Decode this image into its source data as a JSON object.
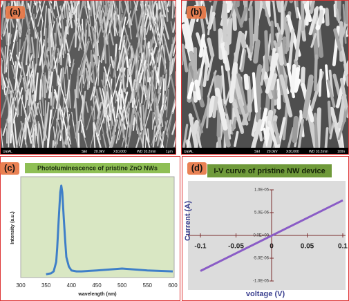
{
  "panels": [
    {
      "label": "(a)",
      "footer": [
        "UaIAL",
        "SEI",
        "20.0kV",
        "X10,000",
        "WD 10.2mm",
        "1μm"
      ]
    },
    {
      "label": "(b)",
      "footer": [
        "UaIAL",
        "SEI",
        "20.0kV",
        "X30,000",
        "WD 10.2mm",
        "100n"
      ]
    },
    {
      "label": "(c)"
    },
    {
      "label": "(d)"
    }
  ],
  "chart_data": [
    {
      "type": "line",
      "title": "Photoluminescence of pristine ZnO NWs",
      "x_label": "wavelength (nm)",
      "y_label": "Intensity (a.u.)",
      "x": [
        350,
        360,
        365,
        370,
        372,
        375,
        378,
        380,
        382,
        385,
        388,
        390,
        395,
        400,
        410,
        420,
        450,
        500,
        550,
        600
      ],
      "values": [
        0.02,
        0.03,
        0.05,
        0.15,
        0.3,
        0.6,
        0.88,
        0.95,
        0.88,
        0.6,
        0.35,
        0.2,
        0.1,
        0.06,
        0.05,
        0.05,
        0.06,
        0.08,
        0.06,
        0.05
      ],
      "color": "#3f7fc8",
      "xlim": [
        300,
        600
      ],
      "xticks": [
        300,
        350,
        400,
        450,
        500,
        550,
        600
      ],
      "ylim": [
        0,
        1
      ]
    },
    {
      "type": "line",
      "title": "I-V curve of pristine NW device",
      "x_label": "voltage (V)",
      "y_label": "Current (A)",
      "x": [
        -0.1,
        0.1
      ],
      "values": [
        -7.8e-06,
        7.7e-06
      ],
      "color": "#8a5cc6",
      "xlim": [
        -0.1,
        0.1
      ],
      "xticks": [
        -0.1,
        -0.05,
        0,
        0.05,
        0.1
      ],
      "ylim": [
        -1e-05,
        1e-05
      ],
      "yticks": [
        {
          "value": -1e-05,
          "label": "-1.0E-05"
        },
        {
          "value": -5e-06,
          "label": "-5.0E-06"
        },
        {
          "value": 0,
          "label": "0.0E+00"
        },
        {
          "value": 5e-06,
          "label": "5.0E-06"
        },
        {
          "value": 1e-05,
          "label": "1.0E-05"
        }
      ]
    }
  ]
}
